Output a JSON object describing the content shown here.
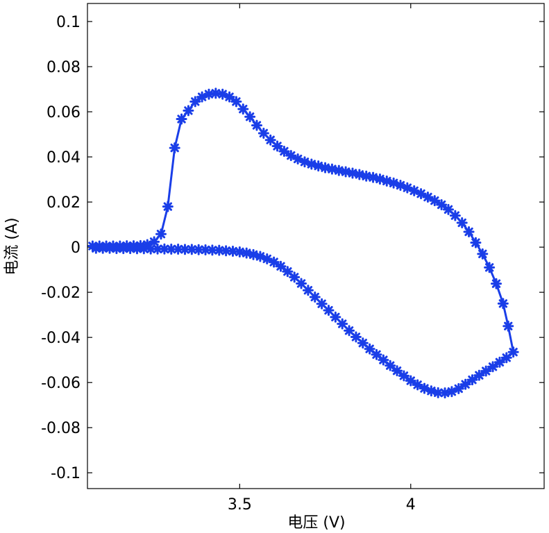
{
  "chart_data": {
    "type": "line",
    "title": "",
    "xlabel": "电压 (V)",
    "ylabel": "电流 (A)",
    "xlim": [
      3.055,
      4.39
    ],
    "ylim": [
      -0.107,
      0.108
    ],
    "grid": false,
    "x_ticks": [
      3.5,
      4
    ],
    "x_tick_labels": [
      "3.5",
      "4"
    ],
    "y_ticks": [
      0.1,
      0.08,
      0.06,
      0.04,
      0.02,
      0,
      -0.02,
      -0.04,
      -0.06,
      -0.08,
      -0.1
    ],
    "y_tick_labels": [
      "0.1",
      "0.08",
      "0.06",
      "0.04",
      "0.02",
      "0",
      "-0.02",
      "-0.04",
      "-0.06",
      "-0.08",
      "-0.1"
    ],
    "line_color": "#1a3ee8",
    "marker": "asterisk",
    "series": [
      {
        "x": [
          3.08,
          3.1,
          3.12,
          3.14,
          3.16,
          3.18,
          3.2,
          3.22,
          3.24,
          3.26,
          3.28,
          3.3,
          3.32,
          3.34,
          3.36,
          3.38,
          3.4,
          3.42,
          3.44,
          3.46,
          3.48,
          3.5,
          3.52,
          3.54,
          3.56,
          3.58,
          3.6,
          3.62,
          3.64,
          3.66,
          3.68,
          3.7,
          3.72,
          3.74,
          3.76,
          3.78,
          3.8,
          3.82,
          3.84,
          3.86,
          3.88,
          3.9,
          3.92,
          3.94,
          3.96,
          3.98,
          4.0,
          4.02,
          4.04,
          4.06,
          4.08,
          4.1,
          4.12,
          4.14,
          4.16,
          4.18,
          4.2,
          4.22,
          4.24,
          4.26,
          4.28,
          4.3,
          4.285,
          4.27,
          4.25,
          4.23,
          4.21,
          4.19,
          4.17,
          4.15,
          4.13,
          4.11,
          4.09,
          4.07,
          4.05,
          4.03,
          4.01,
          3.99,
          3.97,
          3.95,
          3.93,
          3.91,
          3.89,
          3.87,
          3.85,
          3.83,
          3.81,
          3.79,
          3.77,
          3.75,
          3.73,
          3.71,
          3.69,
          3.67,
          3.65,
          3.63,
          3.61,
          3.59,
          3.57,
          3.55,
          3.53,
          3.51,
          3.49,
          3.47,
          3.45,
          3.43,
          3.41,
          3.39,
          3.37,
          3.35,
          3.33,
          3.31,
          3.29,
          3.27,
          3.25,
          3.23,
          3.21,
          3.19,
          3.17,
          3.15,
          3.13,
          3.11,
          3.09,
          3.07
        ],
        "y": [
          -0.0005,
          -0.0005,
          -0.0005,
          -0.0006,
          -0.0006,
          -0.0006,
          -0.0007,
          -0.0007,
          -0.0008,
          -0.0008,
          -0.0008,
          -0.0009,
          -0.0009,
          -0.001,
          -0.001,
          -0.0011,
          -0.0012,
          -0.0013,
          -0.0014,
          -0.0016,
          -0.0018,
          -0.0021,
          -0.0026,
          -0.0033,
          -0.0041,
          -0.0052,
          -0.0066,
          -0.0085,
          -0.0108,
          -0.0133,
          -0.0161,
          -0.0191,
          -0.0221,
          -0.0251,
          -0.028,
          -0.031,
          -0.034,
          -0.037,
          -0.0398,
          -0.0425,
          -0.0451,
          -0.0476,
          -0.05,
          -0.0525,
          -0.0548,
          -0.057,
          -0.0592,
          -0.061,
          -0.0626,
          -0.0637,
          -0.0645,
          -0.0646,
          -0.064,
          -0.0627,
          -0.0608,
          -0.0588,
          -0.0568,
          -0.0549,
          -0.053,
          -0.051,
          -0.049,
          -0.0465,
          -0.035,
          -0.025,
          -0.0162,
          -0.009,
          -0.003,
          0.002,
          0.0068,
          0.0108,
          0.014,
          0.0167,
          0.0188,
          0.0206,
          0.0222,
          0.0237,
          0.025,
          0.0263,
          0.0274,
          0.0284,
          0.0293,
          0.0302,
          0.0309,
          0.0315,
          0.0322,
          0.0328,
          0.0334,
          0.034,
          0.0346,
          0.0352,
          0.036,
          0.0368,
          0.0378,
          0.0391,
          0.0406,
          0.0425,
          0.0448,
          0.0475,
          0.0505,
          0.054,
          0.0578,
          0.0612,
          0.0645,
          0.0666,
          0.0678,
          0.0682,
          0.0678,
          0.0666,
          0.0645,
          0.0605,
          0.0568,
          0.044,
          0.018,
          0.0058,
          0.0024,
          0.0011,
          0.0007,
          0.0006,
          0.0006,
          0.0005,
          0.0005,
          0.0005,
          0.0005,
          0.0005
        ]
      }
    ]
  }
}
